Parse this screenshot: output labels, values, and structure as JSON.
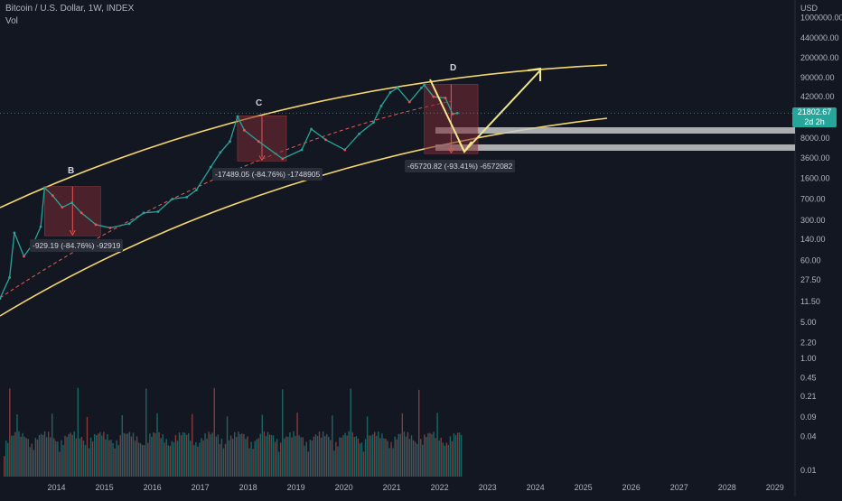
{
  "header": {
    "title": "Bitcoin / U.S. Dollar, 1W, INDEX",
    "volume_label": "Vol"
  },
  "axis": {
    "currency": "USD",
    "y_ticks": [
      "1000000.00",
      "440000.00",
      "200000.00",
      "90000.00",
      "42000.00",
      "8000.00",
      "3600.00",
      "1600.00",
      "700.00",
      "300.00",
      "140.00",
      "60.00",
      "27.50",
      "11.50",
      "5.00",
      "2.20",
      "1.00",
      "0.45",
      "0.21",
      "0.09",
      "0.04",
      "0.01"
    ],
    "x_ticks": [
      "2014",
      "2015",
      "2016",
      "2017",
      "2018",
      "2019",
      "2020",
      "2021",
      "2022",
      "2023",
      "2024",
      "2025",
      "2026",
      "2027",
      "2028",
      "2029"
    ]
  },
  "current_price": {
    "value": "21802.67",
    "countdown": "2d 2h"
  },
  "annotations": {
    "wave_labels": [
      "B",
      "C",
      "D"
    ],
    "drops": [
      "-929.19 (-84.76%) -92919",
      "-17489.05 (-84.76%) -1748905",
      "-65720.82 (-93.41%) -6572082"
    ]
  },
  "colors": {
    "background": "#131722",
    "channel": "#f5d76e",
    "projection": "#f0e68c",
    "up": "#26a69a",
    "down": "#ef5350",
    "drop_box": "#7a2a35",
    "zone": "#c8c8c8",
    "dashed_mid": "#e0605a"
  },
  "chart_data": {
    "type": "line",
    "title": "Bitcoin / U.S. Dollar, 1W, INDEX",
    "xlabel": "",
    "ylabel": "USD",
    "scale": "log",
    "xlim": [
      2013.0,
      2029.6
    ],
    "series": [
      {
        "name": "Bitcoin / U.S. Dollar",
        "x": [
          2013.0,
          2013.2,
          2013.3,
          2013.5,
          2013.7,
          2013.85,
          2013.93,
          2014.1,
          2014.3,
          2014.5,
          2014.7,
          2015.0,
          2015.3,
          2015.7,
          2016.0,
          2016.3,
          2016.6,
          2016.9,
          2017.1,
          2017.4,
          2017.6,
          2017.8,
          2017.96,
          2018.1,
          2018.4,
          2018.9,
          2019.3,
          2019.5,
          2019.8,
          2020.2,
          2020.5,
          2020.8,
          2020.96,
          2021.15,
          2021.3,
          2021.55,
          2021.8,
          2021.86,
          2022.05,
          2022.3,
          2022.45,
          2022.55
        ],
        "values": [
          13,
          30,
          180,
          70,
          120,
          230,
          1100,
          800,
          500,
          600,
          400,
          250,
          220,
          260,
          400,
          420,
          700,
          750,
          1000,
          2500,
          4500,
          7000,
          19000,
          11000,
          7000,
          3500,
          5000,
          11500,
          7500,
          5000,
          9500,
          15000,
          29000,
          50000,
          60000,
          34000,
          60000,
          67000,
          42000,
          40000,
          21000,
          21800
        ]
      }
    ],
    "drop_ranges": [
      {
        "label": "B",
        "from_x": 2013.93,
        "to_x": 2015.1,
        "high": 1150,
        "low": 160
      },
      {
        "label": "C",
        "from_x": 2017.96,
        "to_x": 2018.98,
        "high": 19500,
        "low": 3200
      },
      {
        "label": "D",
        "from_x": 2021.86,
        "to_x": 2022.98,
        "high": 69000,
        "low": 4300
      }
    ],
    "volume": {
      "name": "Vol",
      "ylim": [
        0.01,
        1.0
      ]
    }
  }
}
